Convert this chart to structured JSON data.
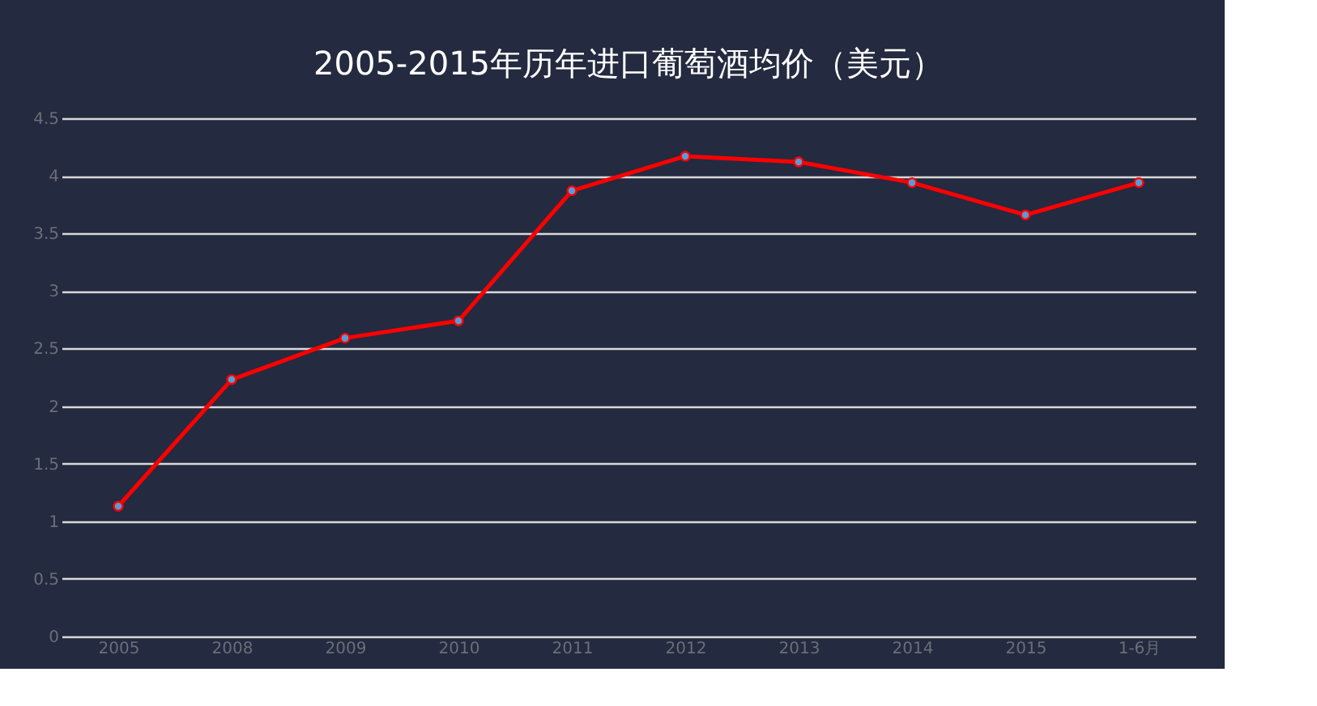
{
  "chart_data": {
    "type": "line",
    "title": "2005-2015年历年进口葡萄酒均价（美元）",
    "categories": [
      "2005",
      "2008",
      "2009",
      "2010",
      "2011",
      "2012",
      "2013",
      "2014",
      "2015",
      "1-6月"
    ],
    "series": [
      {
        "color": "#ff0000",
        "values": [
          1.13,
          2.23,
          2.59,
          2.74,
          3.87,
          4.17,
          4.12,
          3.94,
          3.66,
          3.94
        ]
      }
    ],
    "ylim": [
      0,
      4.5
    ],
    "yticks": [
      0,
      0.5,
      1,
      1.5,
      2,
      2.5,
      3,
      3.5,
      4,
      4.5
    ],
    "grid": "y",
    "marker": "circle",
    "line_style": "solid"
  }
}
